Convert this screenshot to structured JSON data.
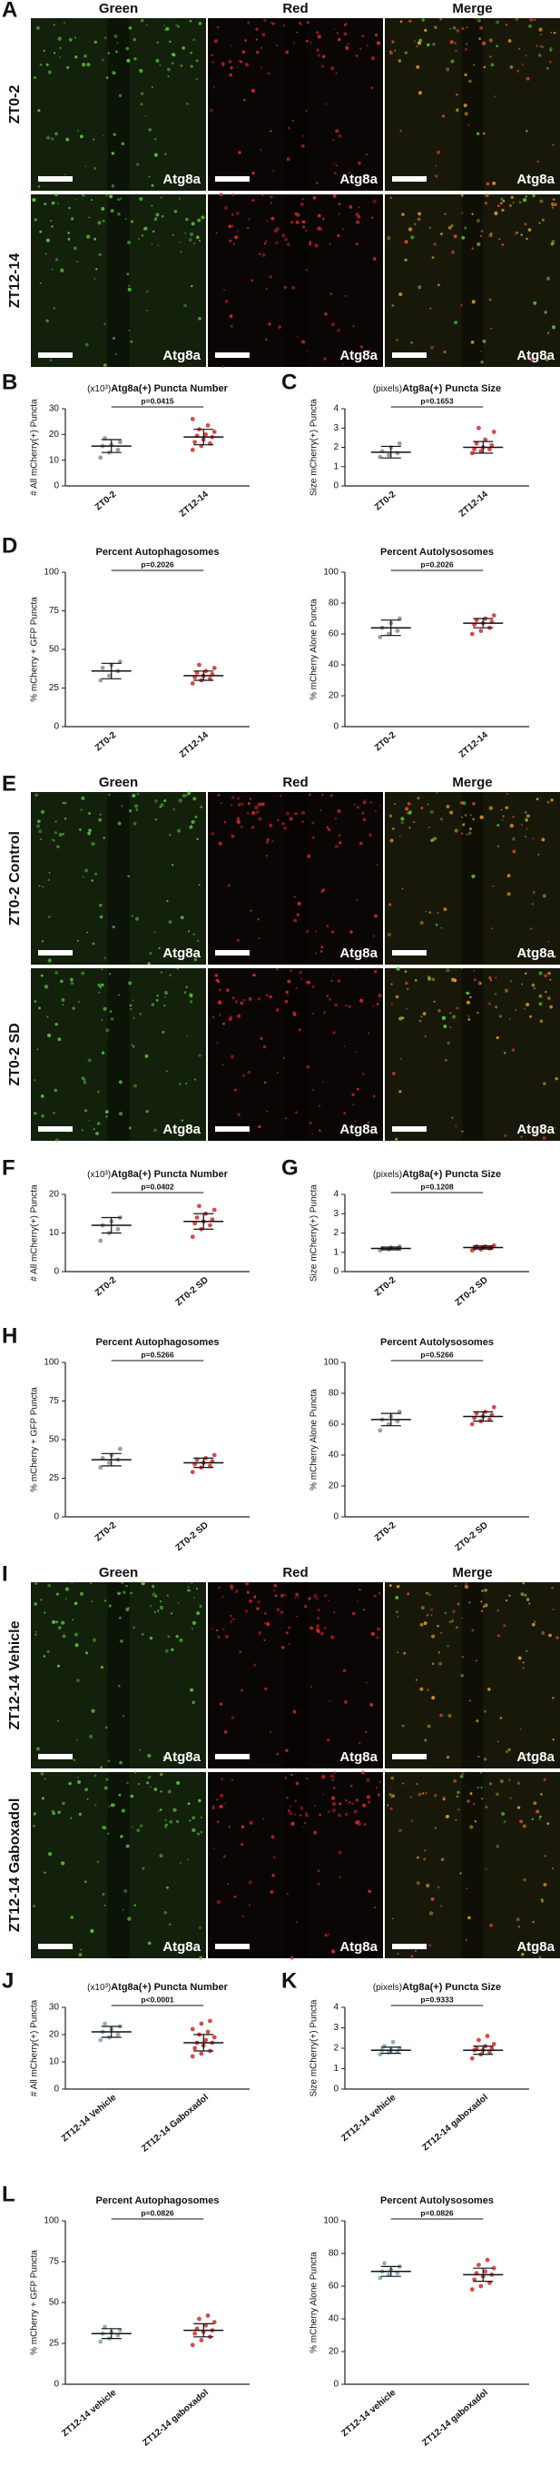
{
  "image_sections": [
    {
      "letter": "A",
      "columns": [
        "Green",
        "Red",
        "Merge"
      ],
      "rows": [
        {
          "label": "ZT0-2",
          "tags": [
            "Atg8a",
            "Atg8a",
            "Atg8a"
          ]
        },
        {
          "label": "ZT12-14",
          "tags": [
            "Atg8a",
            "Atg8a",
            "Atg8a"
          ]
        }
      ]
    },
    {
      "letter": "E",
      "columns": [
        "Green",
        "Red",
        "Merge"
      ],
      "rows": [
        {
          "label": "ZT0-2 Control",
          "tags": [
            "Atg8a",
            "Atg8a",
            "Atg8a"
          ]
        },
        {
          "label": "ZT0-2 SD",
          "tags": [
            "Atg8a",
            "Atg8a",
            "Atg8a"
          ]
        }
      ]
    },
    {
      "letter": "I",
      "columns": [
        "Green",
        "Red",
        "Merge"
      ],
      "rows": [
        {
          "label": "ZT12-14 Vehicle",
          "tags": [
            "Atg8a",
            "Atg8a",
            "Atg8a"
          ]
        },
        {
          "label": "ZT12-14 Gaboxadol",
          "tags": [
            "Atg8a",
            "Atg8a",
            "Atg8a"
          ]
        }
      ]
    }
  ],
  "chart_data": [
    {
      "type": "scatter",
      "letter": "B",
      "unit": "(x10³)",
      "title": "Atg8a(+) Puncta Number",
      "ylabel": "# All mCherry(+) Puncta",
      "ylim": [
        0,
        30
      ],
      "yticks": [
        0,
        10,
        20,
        30
      ],
      "p_value": "p=0.0415",
      "groups": [
        {
          "name": "ZT0-2",
          "color": "#8c8c8c",
          "values": [
            11,
            13,
            14,
            15.5,
            16,
            17,
            18.5
          ],
          "mean": 15.5,
          "sd": 2.5
        },
        {
          "name": "ZT12-14",
          "color": "#d42a2a",
          "values": [
            14,
            15.5,
            16.5,
            17,
            18,
            19,
            19.5,
            20,
            21,
            22,
            23.5,
            26
          ],
          "mean": 19,
          "sd": 3
        }
      ]
    },
    {
      "type": "scatter",
      "letter": "C",
      "unit": "(pixels)",
      "title": "Atg8a(+) Puncta Size",
      "ylabel": "Size mCherry(+) Puncta",
      "ylim": [
        0,
        4
      ],
      "yticks": [
        0,
        1,
        2,
        3,
        4
      ],
      "p_value": "p=0.1653",
      "groups": [
        {
          "name": "ZT0-2",
          "color": "#8c8c8c",
          "values": [
            1.5,
            1.6,
            1.7,
            1.8,
            2.0,
            2.2
          ],
          "mean": 1.75,
          "sd": 0.3
        },
        {
          "name": "ZT12-14",
          "color": "#d42a2a",
          "values": [
            1.7,
            1.8,
            1.9,
            1.9,
            2.0,
            2.1,
            2.2,
            2.4,
            2.8,
            3.0
          ],
          "mean": 2.0,
          "sd": 0.3
        }
      ]
    },
    {
      "type": "scatter",
      "letter": "D",
      "title": "Percent Autophagosomes",
      "ylabel": "% mCherry + GFP Puncta",
      "ylim": [
        0,
        100
      ],
      "yticks": [
        0,
        25,
        50,
        75,
        100
      ],
      "p_value": "p=0.2026",
      "groups": [
        {
          "name": "ZT0-2",
          "color": "#8c8c8c",
          "values": [
            30,
            33,
            36,
            38,
            40,
            42
          ],
          "mean": 36,
          "sd": 5
        },
        {
          "name": "ZT12-14",
          "color": "#d42a2a",
          "values": [
            28,
            30,
            31,
            32,
            33,
            34,
            35,
            36,
            38,
            40
          ],
          "mean": 33,
          "sd": 3
        }
      ]
    },
    {
      "type": "scatter",
      "title": "Percent Autolysosomes",
      "ylabel": "% mCherry Alone Puncta",
      "ylim": [
        0,
        100
      ],
      "yticks": [
        0,
        20,
        40,
        60,
        80,
        100
      ],
      "p_value": "p=0.2026",
      "groups": [
        {
          "name": "ZT0-2",
          "color": "#8c8c8c",
          "values": [
            58,
            60,
            62,
            64,
            67,
            70
          ],
          "mean": 64,
          "sd": 5
        },
        {
          "name": "ZT12-14",
          "color": "#d42a2a",
          "values": [
            60,
            62,
            64,
            66,
            67,
            68,
            69,
            70,
            72
          ],
          "mean": 67,
          "sd": 3
        }
      ]
    },
    {
      "type": "scatter",
      "letter": "F",
      "unit": "(x10³)",
      "title": "Atg8a(+) Puncta Number",
      "ylabel": "# All mCherry(+) Puncta",
      "ylim": [
        0,
        20
      ],
      "yticks": [
        0,
        10,
        20
      ],
      "p_value": "p=0.0402",
      "groups": [
        {
          "name": "ZT0-2",
          "color": "#8c8c8c",
          "values": [
            8,
            10,
            11,
            12,
            13,
            14
          ],
          "mean": 12,
          "sd": 2
        },
        {
          "name": "ZT0-2 SD",
          "color": "#d42a2a",
          "values": [
            9,
            11,
            12,
            12.5,
            13,
            13.5,
            14,
            15,
            16,
            17
          ],
          "mean": 13,
          "sd": 2
        }
      ]
    },
    {
      "type": "scatter",
      "letter": "G",
      "unit": "(pixels)",
      "title": "Atg8a(+) Puncta Size",
      "ylabel": "Size mCherry(+) Puncta",
      "ylim": [
        0,
        4
      ],
      "yticks": [
        0,
        1,
        2,
        3,
        4
      ],
      "p_value": "p=0.1208",
      "groups": [
        {
          "name": "ZT0-2",
          "color": "#8c8c8c",
          "values": [
            1.1,
            1.15,
            1.2,
            1.2,
            1.25,
            1.3
          ],
          "mean": 1.2,
          "sd": 0.07
        },
        {
          "name": "ZT0-2 SD",
          "color": "#d42a2a",
          "values": [
            1.1,
            1.15,
            1.2,
            1.2,
            1.25,
            1.25,
            1.3,
            1.3,
            1.35
          ],
          "mean": 1.25,
          "sd": 0.08
        }
      ]
    },
    {
      "type": "scatter",
      "letter": "H",
      "title": "Percent Autophagosomes",
      "ylabel": "% mCherry + GFP Puncta",
      "ylim": [
        0,
        100
      ],
      "yticks": [
        0,
        25,
        50,
        75,
        100
      ],
      "p_value": "p=0.5266",
      "groups": [
        {
          "name": "ZT0-2",
          "color": "#8c8c8c",
          "values": [
            32,
            35,
            37,
            38,
            40,
            44
          ],
          "mean": 37,
          "sd": 4
        },
        {
          "name": "ZT0-2 SD",
          "color": "#d42a2a",
          "values": [
            29,
            32,
            33,
            34,
            35,
            36,
            37,
            38,
            40
          ],
          "mean": 35,
          "sd": 3
        }
      ]
    },
    {
      "type": "scatter",
      "title": "Percent Autolysosomes",
      "ylabel": "% mCherry Alone Puncta",
      "ylim": [
        0,
        100
      ],
      "yticks": [
        0,
        20,
        40,
        60,
        80,
        100
      ],
      "p_value": "p=0.5266",
      "groups": [
        {
          "name": "ZT0-2",
          "color": "#8c8c8c",
          "values": [
            56,
            60,
            62,
            63,
            65,
            68
          ],
          "mean": 63,
          "sd": 4
        },
        {
          "name": "ZT0-2 SD",
          "color": "#d42a2a",
          "values": [
            60,
            62,
            63,
            64,
            65,
            66,
            67,
            68,
            71
          ],
          "mean": 65,
          "sd": 3
        }
      ]
    },
    {
      "type": "scatter",
      "letter": "J",
      "unit": "(x10³)",
      "title": "Atg8a(+) Puncta Number",
      "ylabel": "# All mCherry(+) Puncta",
      "ylim": [
        0,
        30
      ],
      "yticks": [
        0,
        10,
        20,
        30
      ],
      "p_value": "p<0.0001",
      "groups": [
        {
          "name": "ZT12-14 Vehicle",
          "color": "#7aa3b3",
          "values": [
            18,
            19,
            20,
            21,
            22,
            23,
            24
          ],
          "mean": 21,
          "sd": 2
        },
        {
          "name": "ZT12-14 Gaboxadol",
          "color": "#d42a2a",
          "values": [
            12,
            13,
            14,
            15,
            16,
            17,
            17,
            18,
            19,
            20,
            21,
            22,
            24,
            25
          ],
          "mean": 17,
          "sd": 3
        }
      ]
    },
    {
      "type": "scatter",
      "letter": "K",
      "unit": "(pixels)",
      "title": "Atg8a(+) Puncta Size",
      "ylabel": "Size mCherry(+) Puncta",
      "ylim": [
        0,
        4
      ],
      "yticks": [
        0,
        1,
        2,
        3,
        4
      ],
      "p_value": "p=0.9333",
      "groups": [
        {
          "name": "ZT12-14 vehicle",
          "color": "#7aa3b3",
          "values": [
            1.7,
            1.8,
            1.85,
            1.9,
            1.9,
            2.0,
            2.1,
            2.3
          ],
          "mean": 1.9,
          "sd": 0.15
        },
        {
          "name": "ZT12-14 gaboxadol",
          "color": "#d42a2a",
          "values": [
            1.5,
            1.7,
            1.8,
            1.9,
            1.9,
            2.0,
            2.0,
            2.1,
            2.2,
            2.4,
            2.6
          ],
          "mean": 1.9,
          "sd": 0.2
        }
      ]
    },
    {
      "type": "scatter",
      "letter": "L",
      "title": "Percent Autophagosomes",
      "ylabel": "% mCherry + GFP Puncta",
      "ylim": [
        0,
        100
      ],
      "yticks": [
        0,
        25,
        50,
        75,
        100
      ],
      "p_value": "p=0.0826",
      "groups": [
        {
          "name": "ZT12-14 vehicle",
          "color": "#7aa3b3",
          "values": [
            26,
            28,
            30,
            31,
            32,
            33,
            35
          ],
          "mean": 31,
          "sd": 3
        },
        {
          "name": "ZT12-14 gaboxadol",
          "color": "#d42a2a",
          "values": [
            24,
            27,
            29,
            31,
            32,
            33,
            34,
            36,
            38,
            40,
            42
          ],
          "mean": 33,
          "sd": 4
        }
      ]
    },
    {
      "type": "scatter",
      "title": "Percent Autolysosomes",
      "ylabel": "% mCherry Alone Puncta",
      "ylim": [
        0,
        100
      ],
      "yticks": [
        0,
        20,
        40,
        60,
        80,
        100
      ],
      "p_value": "p=0.0826",
      "groups": [
        {
          "name": "ZT12-14 vehicle",
          "color": "#7aa3b3",
          "values": [
            65,
            67,
            68,
            69,
            70,
            72,
            74
          ],
          "mean": 69,
          "sd": 3
        },
        {
          "name": "ZT12-14 gaboxadol",
          "color": "#d42a2a",
          "values": [
            58,
            60,
            62,
            64,
            66,
            67,
            68,
            69,
            71,
            73,
            76
          ],
          "mean": 67,
          "sd": 4
        }
      ]
    }
  ]
}
